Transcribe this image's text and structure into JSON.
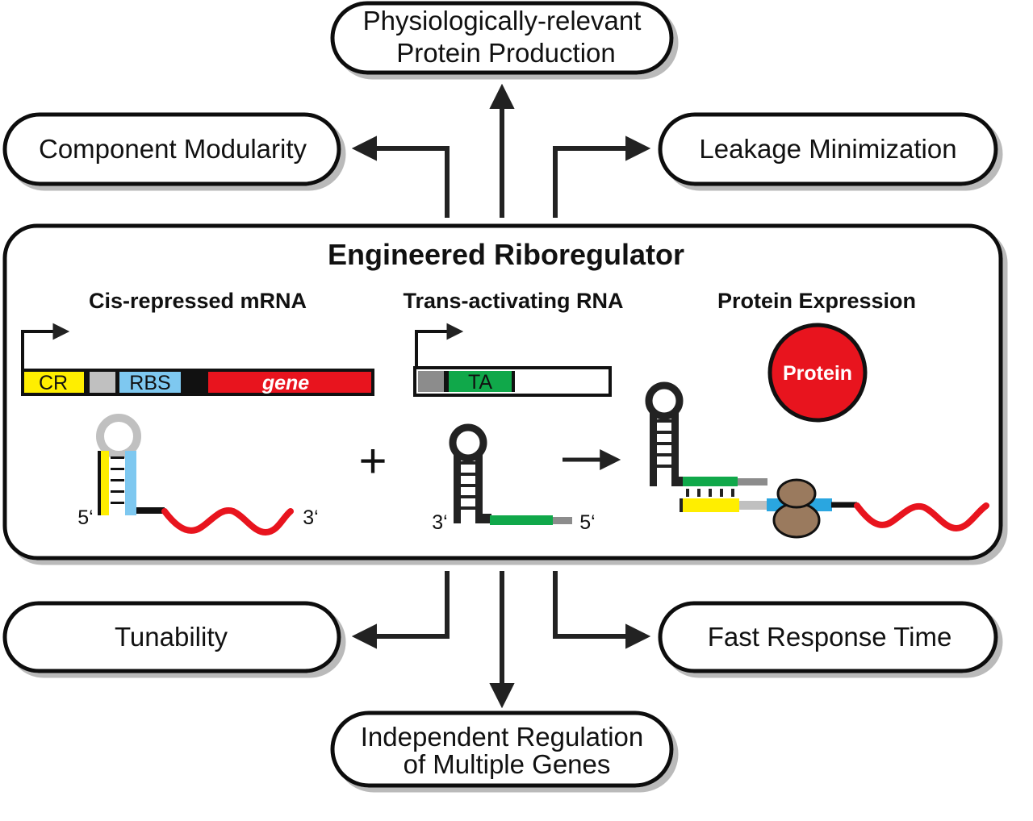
{
  "outcomes": {
    "physiological": {
      "line1": "Physiologically-relevant",
      "line2": "Protein Production"
    },
    "modularity": "Component Modularity",
    "leakage": "Leakage Minimization",
    "tunability": "Tunability",
    "fast_response": "Fast Response Time",
    "independent": {
      "line1": "Independent Regulation",
      "line2": "of Multiple Genes"
    }
  },
  "center": {
    "title": "Engineered Riboregulator",
    "cis_label": "Cis-repressed mRNA",
    "trans_label": "Trans-activating RNA",
    "protein_label": "Protein Expression",
    "segments": {
      "cr": "CR",
      "rbs": "RBS",
      "gene": "gene",
      "ta": "TA"
    },
    "protein": "Protein",
    "plus": "+",
    "ends": {
      "five_prime": "5‘",
      "three_prime": "3‘"
    }
  },
  "colors": {
    "cr": "#ffee00",
    "rbs": "#7ec8f0",
    "gene": "#e8141e",
    "ta": "#10a84a",
    "spacer": "#c0c0c0",
    "ta_spacer": "#8c8c8c",
    "ribosome": "#9a7a5e",
    "outline": "#111111"
  }
}
